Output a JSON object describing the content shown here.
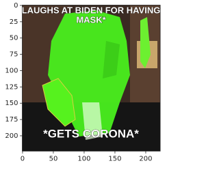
{
  "chart_data": {
    "type": "image",
    "annotations": [
      "LAUGHS AT BIDEN FOR HAVING",
      "MASK*",
      "*GETS CORONA*"
    ],
    "xlim": [
      -0.5,
      223.5
    ],
    "ylim": [
      223.5,
      -0.5
    ],
    "xticks": [
      0,
      50,
      100,
      150,
      200
    ],
    "yticks": [
      0,
      25,
      50,
      75,
      100,
      125,
      150,
      175,
      200
    ]
  }
}
